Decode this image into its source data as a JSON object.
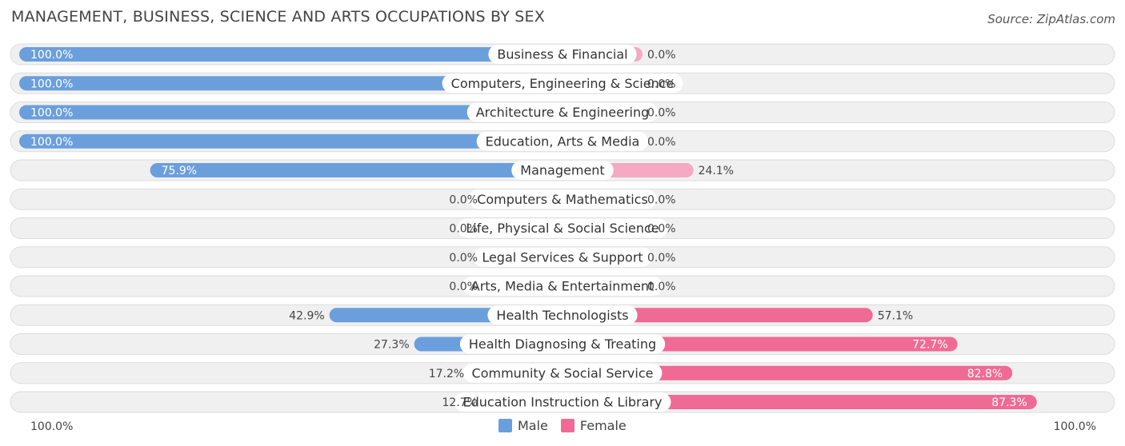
{
  "title": "MANAGEMENT, BUSINESS, SCIENCE AND ARTS OCCUPATIONS BY SEX",
  "source": "Source: ZipAtlas.com",
  "legend": {
    "male_label": "Male",
    "female_label": "Female"
  },
  "axis": {
    "left_label": "100.0%",
    "right_label": "100.0%"
  },
  "colors": {
    "male_strong": "#6a9fdc",
    "male_light": "#a9c8ee",
    "female_strong": "#f06a96",
    "female_light": "#f5a9c2",
    "row_bg": "#f0f0f0",
    "row_border": "#dddddd"
  },
  "chart_data": {
    "type": "bar",
    "orientation": "horizontal-diverging",
    "categories": [
      "Business & Financial",
      "Computers, Engineering & Science",
      "Architecture & Engineering",
      "Education, Arts & Media",
      "Management",
      "Computers & Mathematics",
      "Life, Physical & Social Science",
      "Legal Services & Support",
      "Arts, Media & Entertainment",
      "Health Technologists",
      "Health Diagnosing & Treating",
      "Community & Social Service",
      "Education Instruction & Library"
    ],
    "series": [
      {
        "name": "Male",
        "values": [
          100.0,
          100.0,
          100.0,
          100.0,
          75.9,
          0.0,
          0.0,
          0.0,
          0.0,
          42.9,
          27.3,
          17.2,
          12.7
        ]
      },
      {
        "name": "Female",
        "values": [
          0.0,
          0.0,
          0.0,
          0.0,
          24.1,
          0.0,
          0.0,
          0.0,
          0.0,
          57.1,
          72.7,
          82.8,
          87.3
        ]
      }
    ],
    "value_labels": {
      "male": [
        "100.0%",
        "100.0%",
        "100.0%",
        "100.0%",
        "75.9%",
        "0.0%",
        "0.0%",
        "0.0%",
        "0.0%",
        "42.9%",
        "27.3%",
        "17.2%",
        "12.7%"
      ],
      "female": [
        "0.0%",
        "0.0%",
        "0.0%",
        "0.0%",
        "24.1%",
        "0.0%",
        "0.0%",
        "0.0%",
        "0.0%",
        "57.1%",
        "72.7%",
        "82.8%",
        "87.3%"
      ]
    },
    "xlim": [
      -100,
      100
    ],
    "legend_position": "bottom-center"
  }
}
